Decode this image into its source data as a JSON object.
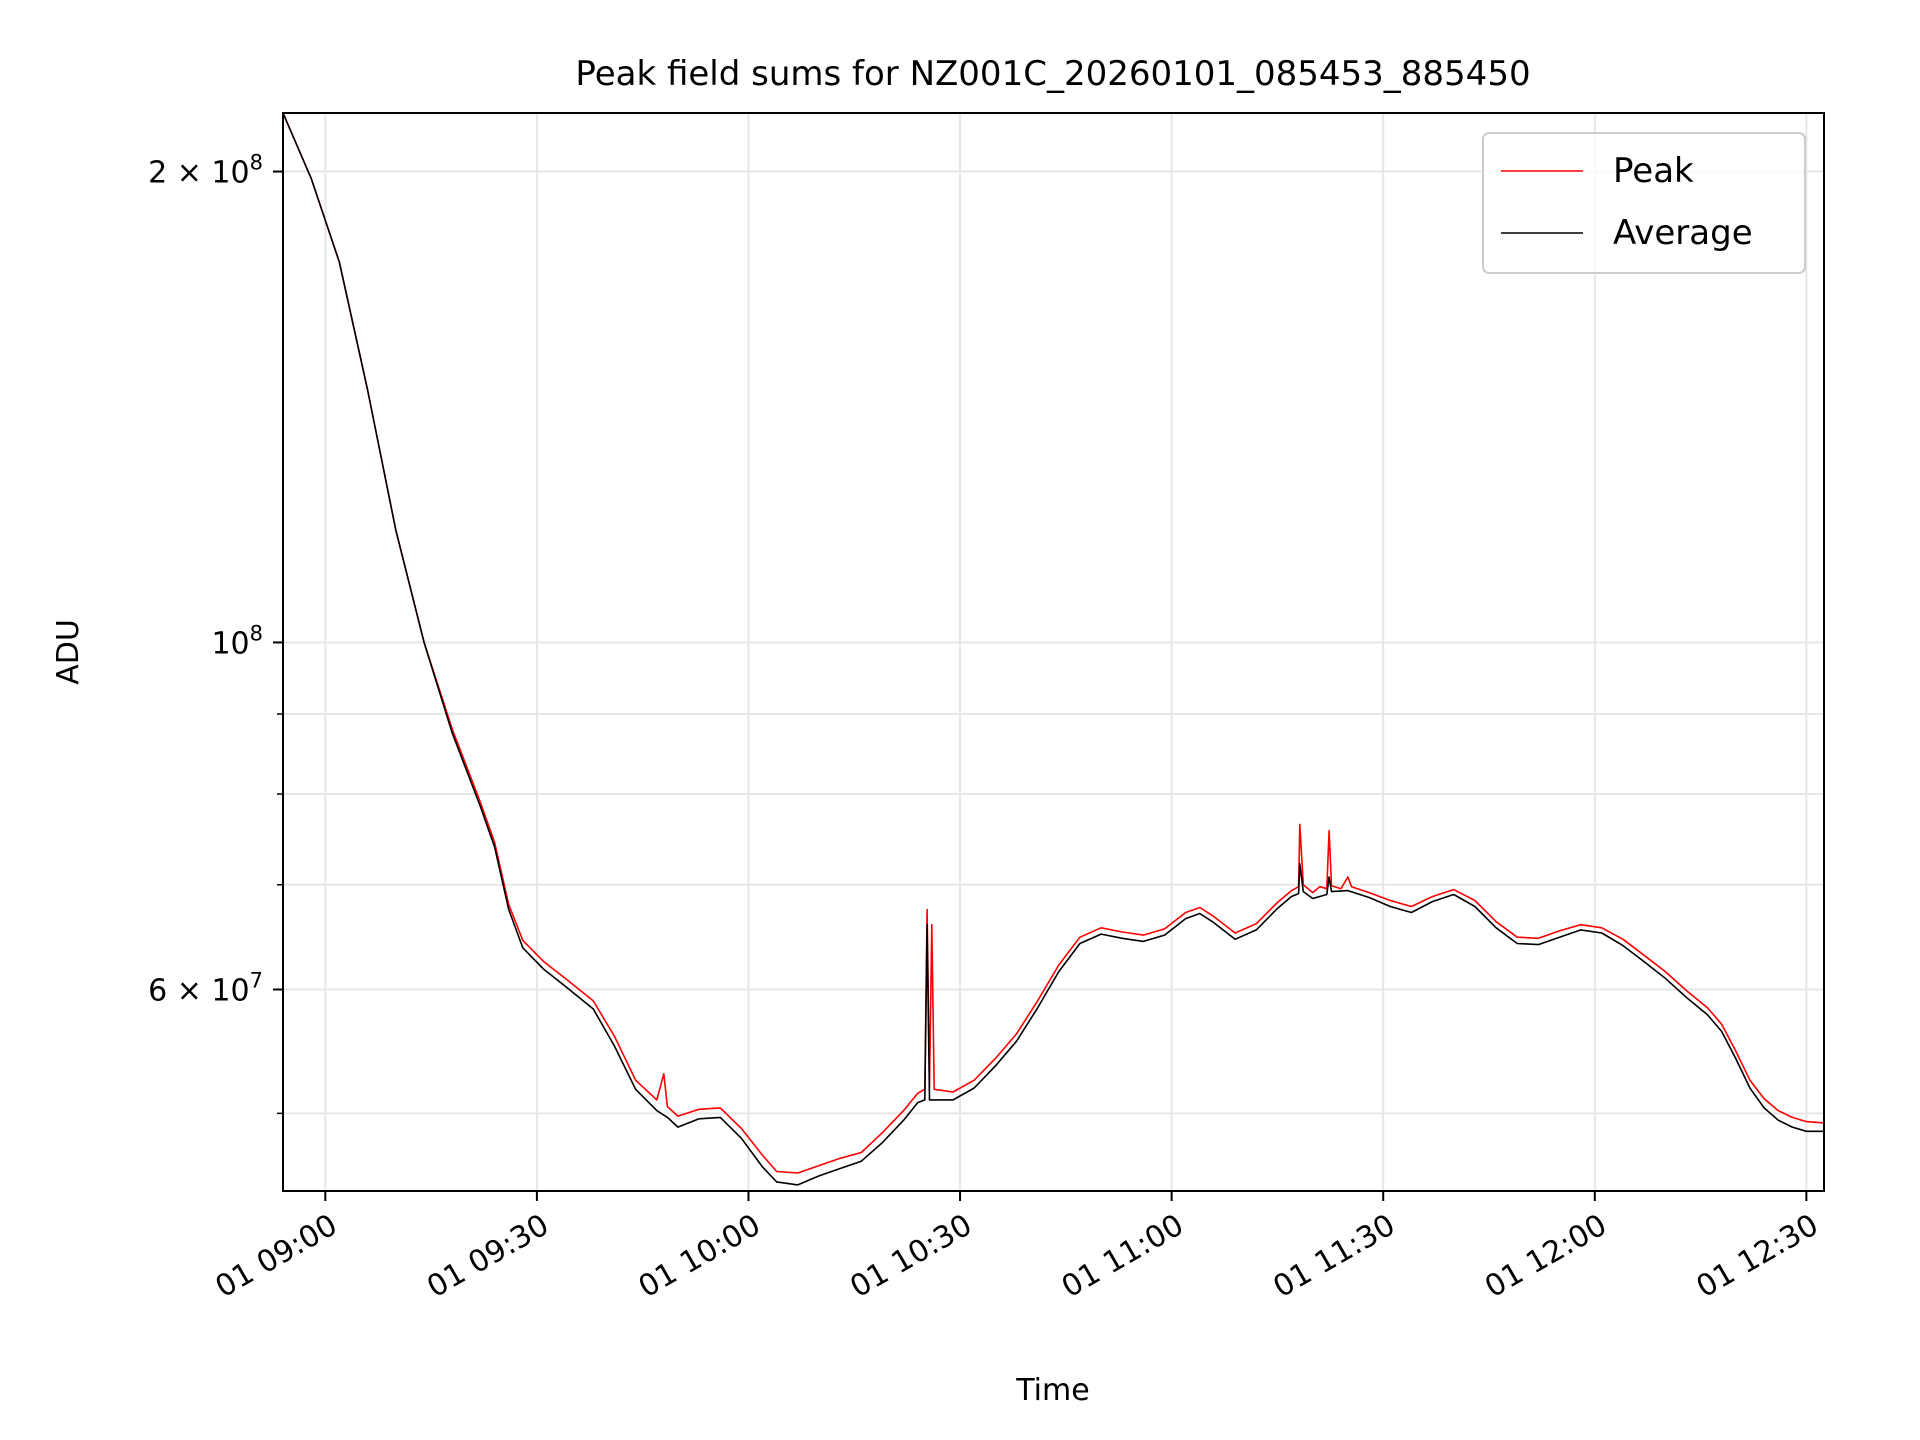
{
  "chart_data": {
    "type": "line",
    "title": "Peak field sums for NZ001C_20260101_085453_885450",
    "xlabel": "Time",
    "ylabel": "ADU",
    "y_scale": "log",
    "x_unit": "clock time (HH:MM), 2026-01-01",
    "xlim": [
      "08:54:00",
      "12:32:30"
    ],
    "ylim": [
      44600000,
      218000000
    ],
    "x_ticks": [
      {
        "t": "09:00",
        "label": "01 09:00"
      },
      {
        "t": "09:30",
        "label": "01 09:30"
      },
      {
        "t": "10:00",
        "label": "01 10:00"
      },
      {
        "t": "10:30",
        "label": "01 10:30"
      },
      {
        "t": "11:00",
        "label": "01 11:00"
      },
      {
        "t": "11:30",
        "label": "01 11:30"
      },
      {
        "t": "12:00",
        "label": "01 12:00"
      },
      {
        "t": "12:30",
        "label": "01 12:30"
      }
    ],
    "y_major_ticks": [
      {
        "value": 200000000,
        "mantissa": "2",
        "exponent": "8"
      },
      {
        "value": 100000000,
        "mantissa": "",
        "exponent": "8"
      },
      {
        "value": 60000000,
        "mantissa": "6",
        "exponent": "7"
      }
    ],
    "y_minor_ticks": [
      50000000,
      70000000,
      80000000,
      90000000
    ],
    "grid": true,
    "legend": {
      "position": "top-right"
    },
    "series": [
      {
        "name": "Peak",
        "color": "#ff0000",
        "points": [
          [
            "08:54",
            218000000
          ],
          [
            "08:58",
            198000000
          ],
          [
            "09:02",
            175000000
          ],
          [
            "09:06",
            145000000
          ],
          [
            "09:10",
            118000000
          ],
          [
            "09:14",
            100000000
          ],
          [
            "09:18",
            88000000
          ],
          [
            "09:22",
            79000000
          ],
          [
            "09:24",
            74500000
          ],
          [
            "09:26",
            68000000
          ],
          [
            "09:28",
            64500000
          ],
          [
            "09:31",
            62500000
          ],
          [
            "09:34",
            61000000
          ],
          [
            "09:38",
            59000000
          ],
          [
            "09:41",
            56000000
          ],
          [
            "09:44",
            52500000
          ],
          [
            "09:47",
            51000000
          ],
          [
            "09:48",
            53000000
          ],
          [
            "09:48:30",
            50500000
          ],
          [
            "09:50",
            49800000
          ],
          [
            "09:53",
            50300000
          ],
          [
            "09:56",
            50400000
          ],
          [
            "09:59",
            48900000
          ],
          [
            "10:02",
            47000000
          ],
          [
            "10:04",
            45900000
          ],
          [
            "10:07",
            45800000
          ],
          [
            "10:10",
            46300000
          ],
          [
            "10:13",
            46800000
          ],
          [
            "10:16",
            47200000
          ],
          [
            "10:19",
            48600000
          ],
          [
            "10:22",
            50200000
          ],
          [
            "10:24",
            51500000
          ],
          [
            "10:25",
            51800000
          ],
          [
            "10:25:20",
            67500000
          ],
          [
            "10:25:40",
            52000000
          ],
          [
            "10:26",
            66000000
          ],
          [
            "10:26:20",
            51800000
          ],
          [
            "10:29",
            51600000
          ],
          [
            "10:32",
            52500000
          ],
          [
            "10:35",
            54200000
          ],
          [
            "10:38",
            56200000
          ],
          [
            "10:41",
            59000000
          ],
          [
            "10:44",
            62200000
          ],
          [
            "10:47",
            64800000
          ],
          [
            "10:50",
            65700000
          ],
          [
            "10:53",
            65300000
          ],
          [
            "10:56",
            65000000
          ],
          [
            "10:59",
            65600000
          ],
          [
            "11:02",
            67200000
          ],
          [
            "11:04",
            67700000
          ],
          [
            "11:06",
            66800000
          ],
          [
            "11:09",
            65200000
          ],
          [
            "11:12",
            66100000
          ],
          [
            "11:15",
            68200000
          ],
          [
            "11:17",
            69400000
          ],
          [
            "11:18",
            69800000
          ],
          [
            "11:18:10",
            76500000
          ],
          [
            "11:18:40",
            70000000
          ],
          [
            "11:20",
            69200000
          ],
          [
            "11:21",
            69800000
          ],
          [
            "11:22",
            69600000
          ],
          [
            "11:22:20",
            75800000
          ],
          [
            "11:22:40",
            69900000
          ],
          [
            "11:24",
            69600000
          ],
          [
            "11:25",
            70800000
          ],
          [
            "11:25:30",
            69800000
          ],
          [
            "11:28",
            69200000
          ],
          [
            "11:31",
            68400000
          ],
          [
            "11:34",
            67800000
          ],
          [
            "11:37",
            68800000
          ],
          [
            "11:40",
            69500000
          ],
          [
            "11:43",
            68400000
          ],
          [
            "11:46",
            66300000
          ],
          [
            "11:49",
            64800000
          ],
          [
            "11:52",
            64700000
          ],
          [
            "11:55",
            65400000
          ],
          [
            "11:58",
            66000000
          ],
          [
            "12:01",
            65700000
          ],
          [
            "12:04",
            64600000
          ],
          [
            "12:07",
            63100000
          ],
          [
            "12:10",
            61600000
          ],
          [
            "12:13",
            59900000
          ],
          [
            "12:16",
            58400000
          ],
          [
            "12:18",
            57000000
          ],
          [
            "12:20",
            54800000
          ],
          [
            "12:22",
            52500000
          ],
          [
            "12:24",
            51100000
          ],
          [
            "12:26",
            50200000
          ],
          [
            "12:28",
            49700000
          ],
          [
            "12:30",
            49400000
          ],
          [
            "12:32:30",
            49300000
          ]
        ]
      },
      {
        "name": "Average",
        "color": "#000000",
        "points": [
          [
            "08:54",
            218000000
          ],
          [
            "08:58",
            198000000
          ],
          [
            "09:02",
            175000000
          ],
          [
            "09:06",
            145000000
          ],
          [
            "09:10",
            118000000
          ],
          [
            "09:14",
            100000000
          ],
          [
            "09:18",
            87500000
          ],
          [
            "09:22",
            78500000
          ],
          [
            "09:24",
            74000000
          ],
          [
            "09:26",
            67500000
          ],
          [
            "09:28",
            63800000
          ],
          [
            "09:31",
            61800000
          ],
          [
            "09:34",
            60300000
          ],
          [
            "09:38",
            58300000
          ],
          [
            "09:41",
            55200000
          ],
          [
            "09:44",
            51800000
          ],
          [
            "09:47",
            50200000
          ],
          [
            "09:48:30",
            49700000
          ],
          [
            "09:50",
            49000000
          ],
          [
            "09:53",
            49600000
          ],
          [
            "09:56",
            49700000
          ],
          [
            "09:59",
            48200000
          ],
          [
            "10:02",
            46200000
          ],
          [
            "10:04",
            45200000
          ],
          [
            "10:07",
            45000000
          ],
          [
            "10:10",
            45600000
          ],
          [
            "10:13",
            46100000
          ],
          [
            "10:16",
            46600000
          ],
          [
            "10:19",
            47900000
          ],
          [
            "10:22",
            49500000
          ],
          [
            "10:24",
            50800000
          ],
          [
            "10:25",
            51000000
          ],
          [
            "10:25:20",
            66000000
          ],
          [
            "10:25:40",
            51000000
          ],
          [
            "10:29",
            51000000
          ],
          [
            "10:32",
            51900000
          ],
          [
            "10:35",
            53600000
          ],
          [
            "10:38",
            55600000
          ],
          [
            "10:41",
            58400000
          ],
          [
            "10:44",
            61600000
          ],
          [
            "10:47",
            64200000
          ],
          [
            "10:50",
            65100000
          ],
          [
            "10:53",
            64700000
          ],
          [
            "10:56",
            64400000
          ],
          [
            "10:59",
            65000000
          ],
          [
            "11:02",
            66600000
          ],
          [
            "11:04",
            67100000
          ],
          [
            "11:06",
            66200000
          ],
          [
            "11:09",
            64600000
          ],
          [
            "11:12",
            65500000
          ],
          [
            "11:15",
            67600000
          ],
          [
            "11:17",
            68800000
          ],
          [
            "11:18",
            69100000
          ],
          [
            "11:18:10",
            72200000
          ],
          [
            "11:18:40",
            69300000
          ],
          [
            "11:20",
            68600000
          ],
          [
            "11:22",
            69000000
          ],
          [
            "11:22:20",
            70800000
          ],
          [
            "11:22:40",
            69300000
          ],
          [
            "11:25",
            69400000
          ],
          [
            "11:28",
            68700000
          ],
          [
            "11:31",
            67800000
          ],
          [
            "11:34",
            67200000
          ],
          [
            "11:37",
            68300000
          ],
          [
            "11:40",
            69000000
          ],
          [
            "11:43",
            67800000
          ],
          [
            "11:46",
            65700000
          ],
          [
            "11:49",
            64200000
          ],
          [
            "11:52",
            64100000
          ],
          [
            "11:55",
            64800000
          ],
          [
            "11:58",
            65500000
          ],
          [
            "12:01",
            65200000
          ],
          [
            "12:04",
            64000000
          ],
          [
            "12:07",
            62500000
          ],
          [
            "12:10",
            61000000
          ],
          [
            "12:13",
            59300000
          ],
          [
            "12:16",
            57800000
          ],
          [
            "12:18",
            56400000
          ],
          [
            "12:20",
            54200000
          ],
          [
            "12:22",
            51900000
          ],
          [
            "12:24",
            50400000
          ],
          [
            "12:26",
            49500000
          ],
          [
            "12:28",
            49000000
          ],
          [
            "12:30",
            48700000
          ],
          [
            "12:32:30",
            48700000
          ]
        ]
      }
    ]
  }
}
